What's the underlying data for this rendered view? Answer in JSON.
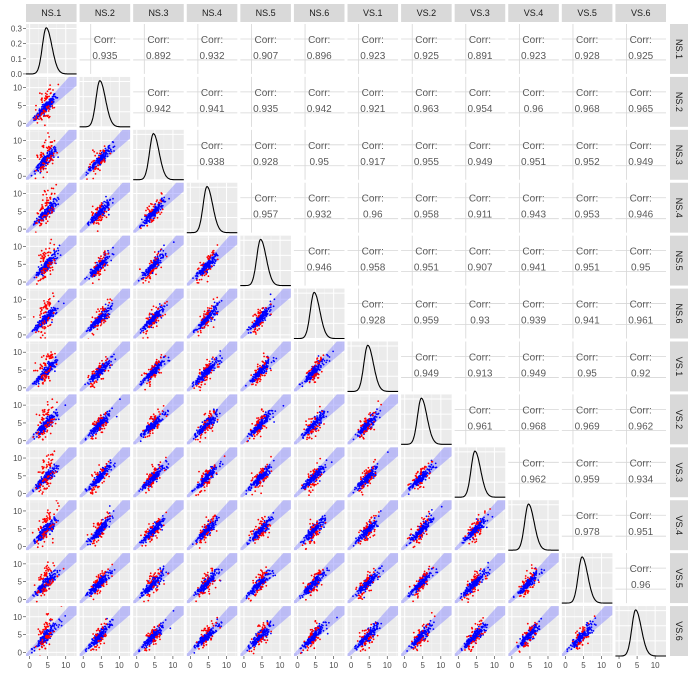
{
  "chart_data": {
    "type": "scatter",
    "variables": [
      "NS.1",
      "NS.2",
      "NS.3",
      "NS.4",
      "NS.5",
      "NS.6",
      "VS.1",
      "VS.2",
      "VS.3",
      "VS.4",
      "VS.5",
      "VS.6"
    ],
    "corr_label": "Corr:",
    "correlations": [
      [
        "",
        "0.935",
        "0.892",
        "0.932",
        "0.907",
        "0.896",
        "0.923",
        "0.925",
        "0.891",
        "0.923",
        "0.928",
        "0.925"
      ],
      [
        "",
        "",
        "0.942",
        "0.941",
        "0.935",
        "0.942",
        "0.921",
        "0.963",
        "0.954",
        "0.96",
        "0.968",
        "0.965"
      ],
      [
        "",
        "",
        "",
        "0.938",
        "0.928",
        "0.95",
        "0.917",
        "0.955",
        "0.949",
        "0.951",
        "0.952",
        "0.949"
      ],
      [
        "",
        "",
        "",
        "",
        "0.957",
        "0.932",
        "0.96",
        "0.958",
        "0.911",
        "0.943",
        "0.953",
        "0.946"
      ],
      [
        "",
        "",
        "",
        "",
        "",
        "0.946",
        "0.958",
        "0.951",
        "0.907",
        "0.941",
        "0.951",
        "0.95"
      ],
      [
        "",
        "",
        "",
        "",
        "",
        "",
        "0.928",
        "0.959",
        "0.93",
        "0.939",
        "0.941",
        "0.961"
      ],
      [
        "",
        "",
        "",
        "",
        "",
        "",
        "",
        "0.949",
        "0.913",
        "0.949",
        "0.95",
        "0.92"
      ],
      [
        "",
        "",
        "",
        "",
        "",
        "",
        "",
        "",
        "0.961",
        "0.968",
        "0.969",
        "0.962"
      ],
      [
        "",
        "",
        "",
        "",
        "",
        "",
        "",
        "",
        "",
        "0.962",
        "0.959",
        "0.934"
      ],
      [
        "",
        "",
        "",
        "",
        "",
        "",
        "",
        "",
        "",
        "",
        "0.978",
        "0.951"
      ],
      [
        "",
        "",
        "",
        "",
        "",
        "",
        "",
        "",
        "",
        "",
        "",
        "0.96"
      ],
      [
        "",
        "",
        "",
        "",
        "",
        "",
        "",
        "",
        "",
        "",
        "",
        ""
      ]
    ],
    "density_ticks": [
      "0.0",
      "0.1",
      "0.2",
      "0.3"
    ],
    "density_ylim": [
      0,
      0.33
    ],
    "value_ticks": [
      "0",
      "5",
      "10"
    ],
    "xlim": [
      -1,
      13
    ],
    "ylim": [
      -1,
      13
    ],
    "colors": {
      "panel_bg": "#ebebeb",
      "grid": "#ffffff",
      "strip_bg": "#d9d9d9",
      "point_in": "#0000ff",
      "point_out": "#ff0000",
      "ribbon": "#8080ff",
      "density": "#000000"
    }
  }
}
